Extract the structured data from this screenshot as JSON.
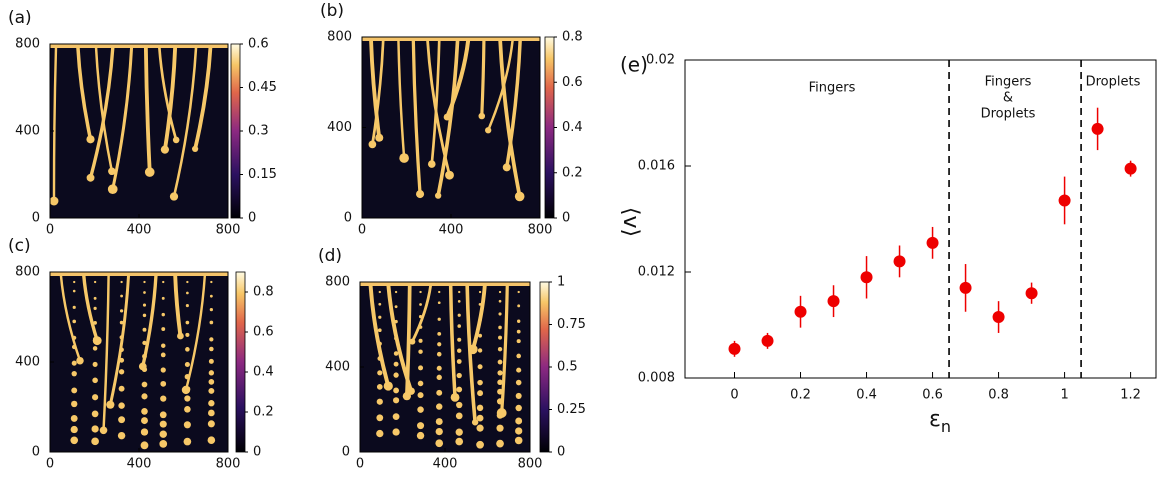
{
  "chart_data": [
    {
      "type": "heatmap",
      "label": "(a)",
      "xlim": [
        0,
        800
      ],
      "xticks": [
        0,
        400,
        800
      ],
      "ylim": [
        0,
        800
      ],
      "yticks": [
        0,
        400,
        800
      ],
      "clim": [
        0,
        0.6
      ],
      "cticks": [
        0,
        0.15,
        0.3,
        0.45,
        0.6
      ]
    },
    {
      "type": "heatmap",
      "label": "(b)",
      "xlim": [
        0,
        800
      ],
      "xticks": [
        0,
        400,
        800
      ],
      "ylim": [
        0,
        800
      ],
      "yticks": [
        0,
        400,
        800
      ],
      "clim": [
        0,
        0.8
      ],
      "cticks": [
        0,
        0.2,
        0.4,
        0.6,
        0.8
      ]
    },
    {
      "type": "heatmap",
      "label": "(c)",
      "xlim": [
        0,
        800
      ],
      "xticks": [
        0,
        400,
        800
      ],
      "ylim": [
        0,
        800
      ],
      "yticks": [
        0,
        400,
        800
      ],
      "clim": [
        0,
        0.9
      ],
      "cticks": [
        0,
        0.2,
        0.4,
        0.6,
        0.8
      ]
    },
    {
      "type": "heatmap",
      "label": "(d)",
      "xlim": [
        0,
        800
      ],
      "xticks": [
        0,
        400,
        800
      ],
      "ylim": [
        0,
        800
      ],
      "yticks": [
        0,
        400,
        800
      ],
      "clim": [
        0,
        1
      ],
      "cticks": [
        0,
        0.25,
        0.5,
        0.75,
        1
      ]
    },
    {
      "type": "scatter",
      "label": "(e)",
      "xlabel": [
        "ε",
        "n"
      ],
      "ylabel": "⟨v⟩",
      "xlim": [
        -0.15,
        1.28
      ],
      "xticks": [
        0,
        0.2,
        0.4,
        0.6,
        0.8,
        1,
        1.2
      ],
      "ylim": [
        0.008,
        0.02
      ],
      "yticks": [
        0.008,
        0.012,
        0.016,
        0.02
      ],
      "x": [
        0,
        0.1,
        0.2,
        0.3,
        0.4,
        0.5,
        0.6,
        0.7,
        0.8,
        0.9,
        1,
        1.1,
        1.2
      ],
      "series": [
        {
          "color": "#ee0000",
          "values": [
            0.0091,
            0.0094,
            0.0105,
            0.0109,
            0.0118,
            0.0124,
            0.0131,
            0.0114,
            0.0103,
            0.0112,
            0.0147,
            0.0174,
            0.0159
          ],
          "errors": [
            0.0003,
            0.0003,
            0.0006,
            0.0006,
            0.0008,
            0.0006,
            0.0006,
            0.0009,
            0.0006,
            0.0004,
            0.0009,
            0.0008,
            0.0003
          ]
        }
      ],
      "vlines": [
        0.65,
        1.05
      ],
      "annotations": [
        "Fingers",
        "Fingers",
        "&",
        "Droplets",
        "Droplets"
      ]
    }
  ]
}
